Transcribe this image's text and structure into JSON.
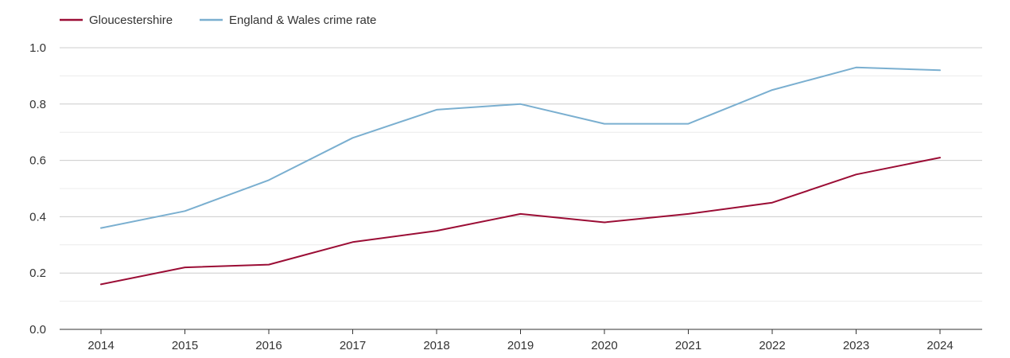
{
  "chart_data": {
    "type": "line",
    "x": [
      "2014",
      "2015",
      "2016",
      "2017",
      "2018",
      "2019",
      "2020",
      "2021",
      "2022",
      "2023",
      "2024"
    ],
    "series": [
      {
        "name": "Gloucestershire",
        "color": "#9b0d35",
        "values": [
          0.16,
          0.22,
          0.23,
          0.31,
          0.35,
          0.41,
          0.38,
          0.41,
          0.45,
          0.55,
          0.61
        ]
      },
      {
        "name": "England & Wales crime rate",
        "color": "#7aafd0",
        "values": [
          0.36,
          0.42,
          0.53,
          0.68,
          0.78,
          0.8,
          0.73,
          0.73,
          0.85,
          0.93,
          0.92
        ]
      }
    ],
    "y_ticks": [
      "0.0",
      "0.2",
      "0.4",
      "0.6",
      "0.8",
      "1.0"
    ],
    "ylim": [
      0,
      1.0
    ],
    "grid": true,
    "legend_position": "top-left",
    "title": "",
    "xlabel": "",
    "ylabel": ""
  }
}
